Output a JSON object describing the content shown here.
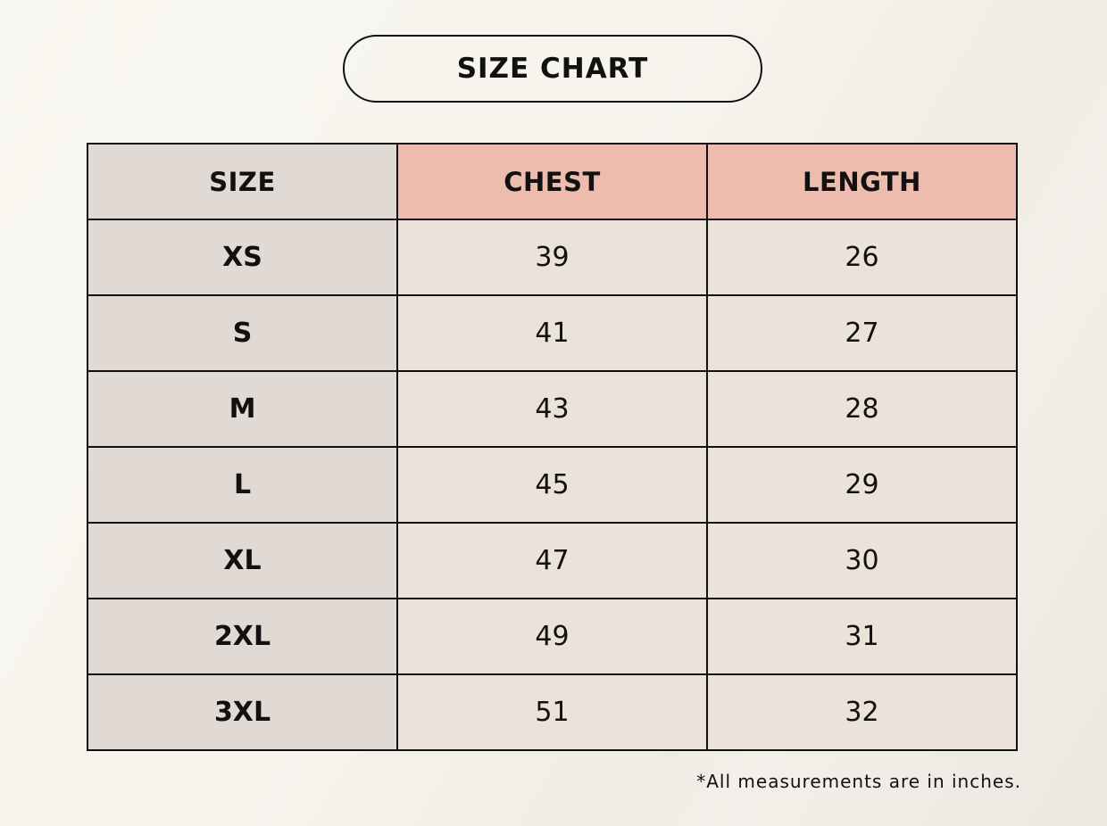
{
  "title": "SIZE CHART",
  "headers": [
    "SIZE",
    "CHEST",
    "LENGTH"
  ],
  "rows": [
    {
      "size": "XS",
      "chest": "39",
      "length": "26"
    },
    {
      "size": "S",
      "chest": "41",
      "length": "27"
    },
    {
      "size": "M",
      "chest": "43",
      "length": "28"
    },
    {
      "size": "L",
      "chest": "45",
      "length": "29"
    },
    {
      "size": "XL",
      "chest": "47",
      "length": "30"
    },
    {
      "size": "2XL",
      "chest": "49",
      "length": "31"
    },
    {
      "size": "3XL",
      "chest": "51",
      "length": "32"
    }
  ],
  "note": "*All measurements are in inches.",
  "colors": {
    "size_column": "#e0d9d4",
    "header_accent": "#edbcaf",
    "cell": "#ebe3d9"
  }
}
